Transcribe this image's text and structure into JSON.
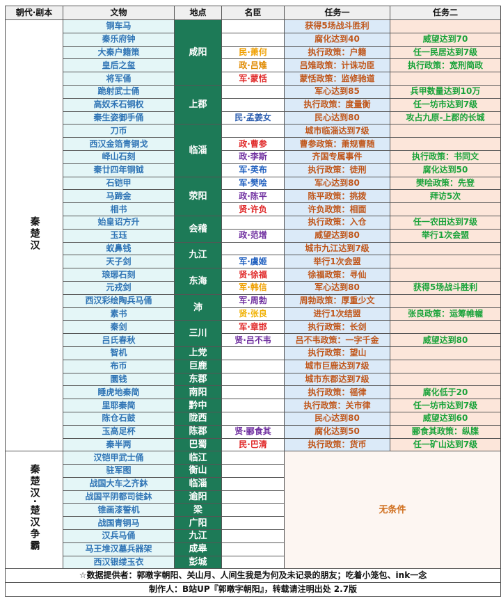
{
  "header": {
    "dynasty": "朝代·剧本",
    "relic": "文物",
    "place": "地点",
    "minister": "名臣",
    "task1": "任务一",
    "task2": "任务二"
  },
  "groups": [
    {
      "dynasty": "秦楚汉",
      "places": [
        {
          "name": "咸阳",
          "relics": [
            {
              "relic": "铜车马",
              "task1": "获得5场战斗胜利"
            },
            {
              "relic": "秦乐府钟",
              "task1": "腐化达到40",
              "task2": "威望达到70"
            },
            {
              "relic": "大秦户籍策",
              "minister": {
                "text": "民·萧何",
                "color": "#f0a000"
              },
              "task1": "执行政策：户籍",
              "task2": "任一民居达到7级"
            },
            {
              "relic": "皇后之玺",
              "minister": {
                "text": "政·吕雉",
                "color": "#e08a00"
              },
              "task1": "吕雉政策：计诛功臣",
              "task2": "执行政策：宽刑简政"
            },
            {
              "relic": "将军俑",
              "minister": {
                "text": "军·蒙恬",
                "color": "#e02828"
              },
              "task1": "蒙恬政策：监修驰道"
            }
          ]
        },
        {
          "name": "上郡",
          "relics": [
            {
              "relic": "跪射武士俑",
              "task1": "军心达到85",
              "task2": "兵甲数量达到10万"
            },
            {
              "relic": "高奴禾石铜权",
              "task1": "执行政策：度量衡",
              "task2": "任一坊市达到7级"
            },
            {
              "relic": "秦生姿御手俑",
              "minister": {
                "text": "民·孟姜女",
                "color": "#2e5fb0"
              },
              "task1": "民心达到80",
              "task2": "攻占九原-上郡的长城"
            }
          ]
        },
        {
          "name": "临淄",
          "relics": [
            {
              "relic": "刀币",
              "task1": "城市临淄达到7级"
            },
            {
              "relic": "西汉金箔青铜戈",
              "minister": {
                "text": "政·曹参",
                "color": "#e02828"
              },
              "task1": "曹参政策：萧规曹随"
            },
            {
              "relic": "峄山石刻",
              "minister": {
                "text": "政·李斯",
                "color": "#7030a0"
              },
              "task1": "齐国专属事件",
              "task2": "执行政策：书同文"
            },
            {
              "relic": "秦廿四年铜钺",
              "minister": {
                "text": "军·英布",
                "color": "#1f5fbf"
              },
              "task1": "执行政策：徒刑",
              "task2": "腐化达到50"
            }
          ]
        },
        {
          "name": "荥阳",
          "relics": [
            {
              "relic": "石铠甲",
              "minister": {
                "text": "军·樊哙",
                "color": "#1f5fbf"
              },
              "task1": "军心达到80",
              "task2": "樊哙政策：先登"
            },
            {
              "relic": "马蹄金",
              "minister": {
                "text": "政·陈平",
                "color": "#7030a0"
              },
              "task1": "陈平政策：挑拨",
              "task2": "拜访5次"
            },
            {
              "relic": "相书",
              "minister": {
                "text": "贤·许负",
                "color": "#e02828"
              },
              "task1": "许负政策：相面"
            }
          ]
        },
        {
          "name": "会稽",
          "relics": [
            {
              "relic": "始皇诏方升",
              "task1": "执行政策：入仓",
              "task2": "任一农田达到7级"
            },
            {
              "relic": "玉珏",
              "minister": {
                "text": "政·范增",
                "color": "#7030a0"
              },
              "task1": "威望达到80",
              "task2": "举行1次会盟"
            }
          ]
        },
        {
          "name": "九江",
          "relics": [
            {
              "relic": "蚁鼻钱",
              "task1": "城市九江达到7级"
            },
            {
              "relic": "天子剑",
              "minister": {
                "text": "军·虞姬",
                "color": "#1f5fbf"
              },
              "task1": "举行1次会盟"
            }
          ]
        },
        {
          "name": "东海",
          "relics": [
            {
              "relic": "琅琊石刻",
              "minister": {
                "text": "贤·徐福",
                "color": "#e02828"
              },
              "task1": "徐福政策：寻仙"
            },
            {
              "relic": "元戎剑",
              "minister": {
                "text": "军·韩信",
                "color": "#f0a000"
              },
              "task1": "军心达到80",
              "task2": "获得5场战斗胜利"
            }
          ]
        },
        {
          "name": "沛",
          "relics": [
            {
              "relic": "西汉彩绘陶兵马俑",
              "minister": {
                "text": "军·周勃",
                "color": "#7030a0"
              },
              "task1": "周勃政策：厚重少文"
            },
            {
              "relic": "素书",
              "minister": {
                "text": "贤·张良",
                "color": "#f0b000"
              },
              "task1": "进行1次结盟",
              "task2": "张良政策：运筹帷幄"
            }
          ]
        },
        {
          "name": "三川",
          "relics": [
            {
              "relic": "秦剑",
              "minister": {
                "text": "军·章邯",
                "color": "#e02828"
              },
              "task1": "执行政策：长剑"
            },
            {
              "relic": "吕氏春秋",
              "minister": {
                "text": "贤·吕不韦",
                "color": "#7030a0"
              },
              "task1": "吕不韦政策：一字千金",
              "task2": "威望达到80"
            }
          ]
        },
        {
          "name": "上党",
          "relics": [
            {
              "relic": "智机",
              "task1": "执行政策：望山"
            }
          ]
        },
        {
          "name": "巨鹿",
          "relics": [
            {
              "relic": "布币",
              "task1": "城市巨鹿达到7级"
            }
          ]
        },
        {
          "name": "东郡",
          "relics": [
            {
              "relic": "圜钱",
              "task1": "城市东郡达到7级"
            }
          ]
        },
        {
          "name": "南阳",
          "relics": [
            {
              "relic": "睡虎地秦简",
              "task1": "执行政策：徭律",
              "task2": "腐化低于20"
            }
          ]
        },
        {
          "name": "黔中",
          "relics": [
            {
              "relic": "里耶秦简",
              "task1": "执行政策：关市律",
              "task2": "任一坊市达到7级"
            }
          ]
        },
        {
          "name": "陇西",
          "relics": [
            {
              "relic": "陈仓石鼓",
              "task1": "民心达到80",
              "task2": "威望达到60"
            }
          ]
        },
        {
          "name": "陈郡",
          "relics": [
            {
              "relic": "玉高足杯",
              "minister": {
                "text": "贤·郦食其",
                "color": "#7030a0"
              },
              "task1": "腐化达到50",
              "task2": "郦食其政策：纵牒"
            }
          ]
        },
        {
          "name": "巴蜀",
          "relics": [
            {
              "relic": "秦半两",
              "minister": {
                "text": "民·巴清",
                "color": "#e02828"
              },
              "task1": "执行政策：货币",
              "task2": "任一矿山达到7级"
            }
          ]
        }
      ]
    },
    {
      "dynasty": "秦楚汉·楚汉争霸",
      "task_all": "无条件",
      "places": [
        {
          "name": "临江",
          "relics": [
            {
              "relic": "汉铠甲武士俑"
            }
          ]
        },
        {
          "name": "衡山",
          "relics": [
            {
              "relic": "驻军图"
            }
          ]
        },
        {
          "name": "临淄",
          "relics": [
            {
              "relic": "战国大车之齐鈢"
            }
          ]
        },
        {
          "name": "逾阳",
          "relics": [
            {
              "relic": "战国平阴都司徒鈢"
            }
          ]
        },
        {
          "name": "梁",
          "relics": [
            {
              "relic": "锥画漆誓机"
            }
          ]
        },
        {
          "name": "广阳",
          "relics": [
            {
              "relic": "战国青铜马"
            }
          ]
        },
        {
          "name": "九江",
          "relics": [
            {
              "relic": "汉兵马俑"
            }
          ]
        },
        {
          "name": "成皋",
          "relics": [
            {
              "relic": "马王堆汉墓兵器架"
            }
          ]
        },
        {
          "name": "彭城",
          "relics": [
            {
              "relic": "西汉银缕玉衣"
            }
          ]
        }
      ]
    }
  ],
  "footer": {
    "credits": "☆数据提供者：郭暾字朝阳、关山月、人间生我是为何及未记录的朋友；吃着小笼包、ink一念",
    "author": "制作人：B站UP『郭暾字朝阳』，转载请注明出处 2.7版"
  }
}
